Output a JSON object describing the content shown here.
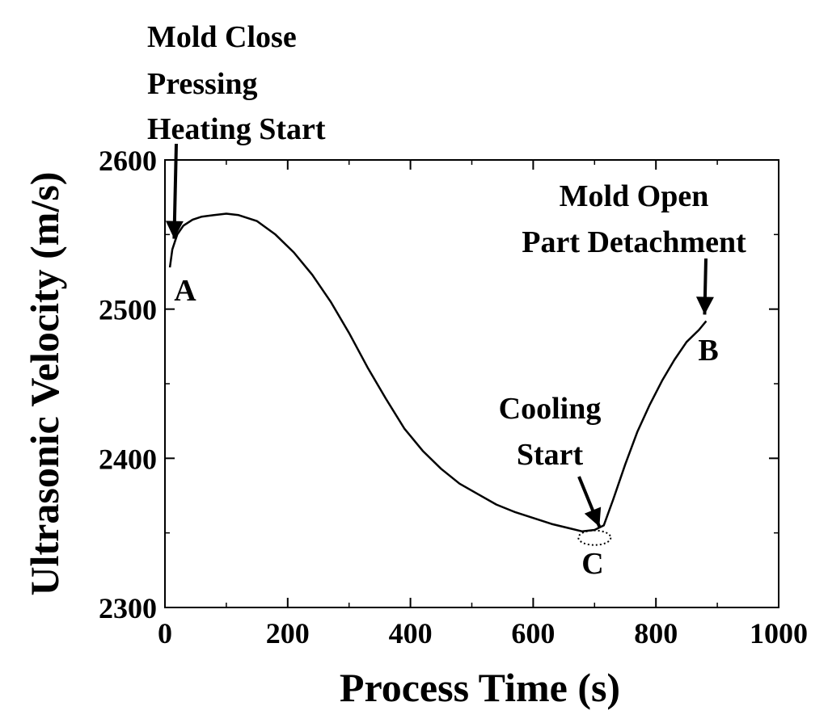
{
  "chart_data": {
    "type": "line",
    "title": "",
    "xlabel": "Process Time (s)",
    "ylabel": "Ultrasonic Velocity (m/s)",
    "xlim": [
      0,
      1000
    ],
    "ylim": [
      2300,
      2600
    ],
    "xticks": [
      0,
      200,
      400,
      600,
      800,
      1000
    ],
    "yticks": [
      2300,
      2400,
      2500,
      2600
    ],
    "xtick_labels": [
      "0",
      "200",
      "400",
      "600",
      "800",
      "1000"
    ],
    "ytick_labels": [
      "2300",
      "2400",
      "2500",
      "2600"
    ],
    "grid": false,
    "series": [
      {
        "x": [
          8,
          12,
          20,
          30,
          45,
          60,
          80,
          100,
          120,
          150,
          180,
          210,
          240,
          270,
          300,
          330,
          360,
          390,
          420,
          450,
          480,
          510,
          540,
          570,
          600,
          630,
          660,
          680,
          700,
          715,
          730,
          750,
          770,
          790,
          810,
          830,
          850,
          870,
          882
        ],
        "y": [
          2528,
          2540,
          2550,
          2556,
          2560,
          2562,
          2563,
          2564,
          2563,
          2559,
          2550,
          2538,
          2523,
          2505,
          2484,
          2461,
          2440,
          2420,
          2405,
          2393,
          2383,
          2376,
          2369,
          2364,
          2360,
          2356,
          2353,
          2351,
          2352,
          2355,
          2372,
          2396,
          2418,
          2436,
          2452,
          2466,
          2478,
          2486,
          2492
        ]
      }
    ],
    "annotations": [
      {
        "lines": [
          "Mold Close",
          "Pressing",
          "Heating Start"
        ],
        "x": 15,
        "y": 2545
      },
      {
        "lines": [
          "Mold Open",
          "Part Detachment"
        ],
        "x": 882,
        "y": 2492
      },
      {
        "lines": [
          "Cooling",
          "Start"
        ],
        "x": 700,
        "y": 2352
      }
    ],
    "point_labels": [
      {
        "text": "A",
        "x": 15,
        "y": 2527
      },
      {
        "text": "B",
        "x": 890,
        "y": 2480
      },
      {
        "text": "C",
        "x": 700,
        "y": 2330
      }
    ]
  }
}
